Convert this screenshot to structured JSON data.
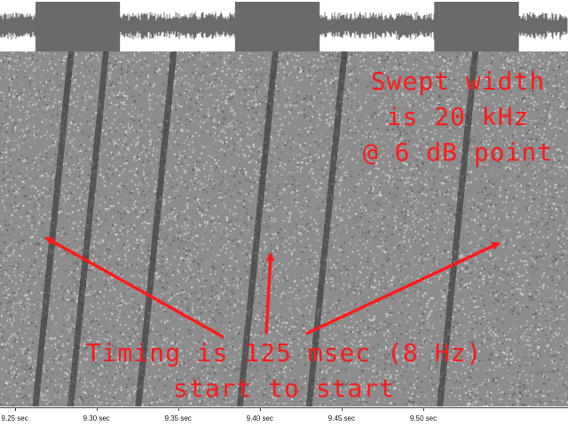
{
  "waveform": {
    "colors": {
      "background": "#ffffff",
      "trace": "#6b6b6b",
      "pulse": "#6a6a6a"
    },
    "pulse_segments": [
      {
        "start_sec": 9.2627,
        "end_sec": 9.3144
      },
      {
        "start_sec": 9.3848,
        "end_sec": 9.4366
      },
      {
        "start_sec": 9.5067,
        "end_sec": 9.5585
      }
    ]
  },
  "spectrogram": {
    "colors": {
      "background": "#8c8c8c",
      "speckle_light": "#d8d8d8",
      "speckle_dark": "#5a5a5a",
      "trace": "#262626"
    },
    "sweep_starts_sec": [
      9.2627,
      9.2842,
      9.3256,
      9.3878,
      9.4301,
      9.5101
    ],
    "sweep_period_sec": 0.125
  },
  "annotations": {
    "color": "#ff1a1a",
    "swept_width_lines": [
      "Swept width",
      "is 20 kHz",
      "@ 6 dB point"
    ],
    "timing_lines": [
      "Timing is 125 msec (8 Hz)",
      "start to start"
    ]
  },
  "time_axis": {
    "tick_labels": [
      "9.25 sec",
      "9.30 sec",
      "9.35 sec",
      "9.40 sec",
      "9.45 sec",
      "9.50 sec"
    ],
    "tick_values_sec": [
      9.25,
      9.3,
      9.35,
      9.4,
      9.45,
      9.5
    ],
    "range_sec": [
      9.241,
      9.5885
    ]
  }
}
